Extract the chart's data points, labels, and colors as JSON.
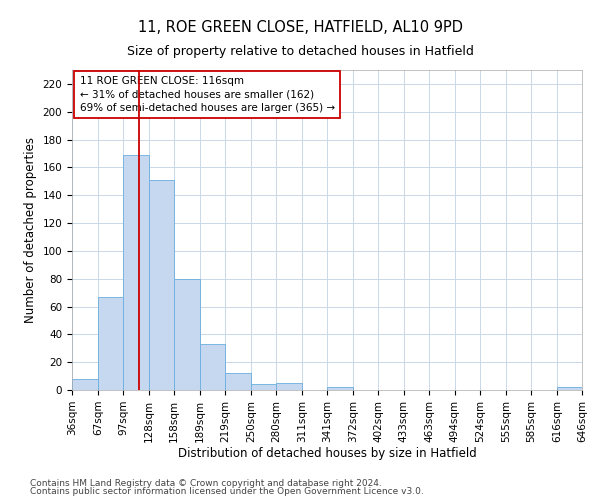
{
  "title_line1": "11, ROE GREEN CLOSE, HATFIELD, AL10 9PD",
  "title_line2": "Size of property relative to detached houses in Hatfield",
  "xlabel": "Distribution of detached houses by size in Hatfield",
  "ylabel": "Number of detached properties",
  "bar_edges": [
    36,
    67,
    97,
    128,
    158,
    189,
    219,
    250,
    280,
    311,
    341,
    372,
    402,
    433,
    463,
    494,
    524,
    555,
    585,
    616,
    646
  ],
  "bar_heights": [
    8,
    67,
    169,
    151,
    80,
    33,
    12,
    4,
    5,
    0,
    2,
    0,
    0,
    0,
    0,
    0,
    0,
    0,
    0,
    2,
    0
  ],
  "bar_color": "#c5d8f0",
  "bar_edge_color": "#6aaee0",
  "vline_x": 116,
  "vline_color": "#cc0000",
  "annotation_text_line1": "11 ROE GREEN CLOSE: 116sqm",
  "annotation_text_line2": "← 31% of detached houses are smaller (162)",
  "annotation_text_line3": "69% of semi-detached houses are larger (365) →",
  "box_edge_color": "#cc0000",
  "ylim": [
    0,
    230
  ],
  "yticks": [
    0,
    20,
    40,
    60,
    80,
    100,
    120,
    140,
    160,
    180,
    200,
    220
  ],
  "grid_color": "#c8d8e8",
  "background_color": "#ffffff",
  "footer_line1": "Contains HM Land Registry data © Crown copyright and database right 2024.",
  "footer_line2": "Contains public sector information licensed under the Open Government Licence v3.0.",
  "title_fontsize": 10.5,
  "subtitle_fontsize": 9,
  "axis_label_fontsize": 8.5,
  "tick_fontsize": 7.5,
  "annotation_fontsize": 7.5,
  "footer_fontsize": 6.5
}
